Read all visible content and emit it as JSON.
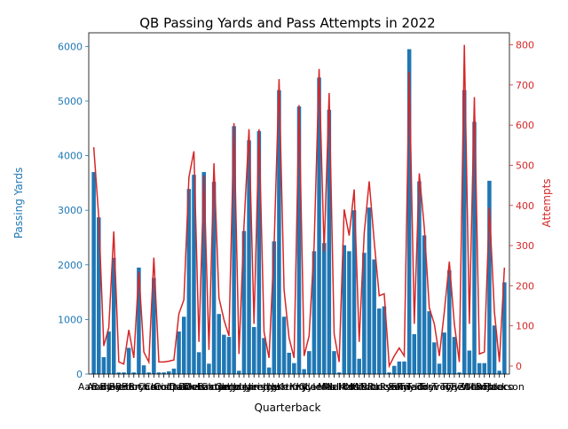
{
  "chart_data": {
    "type": "bar+line",
    "title": "QB Passing Yards and Pass Attempts in 2022",
    "xlabel": "Quarterback",
    "ylabel_left": "Passing Yards",
    "ylabel_right": "Attempts",
    "ylim_left": [
      0,
      6250
    ],
    "ylim_right": [
      -20,
      830
    ],
    "yticks_left": [
      0,
      1000,
      2000,
      3000,
      4000,
      5000,
      6000
    ],
    "yticks_right": [
      0,
      100,
      200,
      300,
      400,
      500,
      600,
      700,
      800
    ],
    "xtick_labels_visible": [
      "Aaron",
      "Andy",
      "Bailey",
      "Baker",
      "Brett",
      "Brian",
      "Brock",
      "Bryce",
      "Case",
      "Chris",
      "Colt",
      "Cooper",
      "Dak",
      "Daniel",
      "Davis",
      "Derek",
      "Desmond",
      "Easton",
      "Gardner",
      "Geno",
      "Jacoby",
      "Jalen",
      "Jameis",
      "Jared",
      "Jimmy",
      "Joe",
      "Josh",
      "Justin",
      "Kenny",
      "Kirk",
      "Kyle",
      "Kyler",
      "Lamar",
      "Mac",
      "Malik",
      "Marcus",
      "Matt",
      "Mike",
      "Mitch",
      "Nick",
      "Patrick",
      "Russell",
      "Ryan",
      "Sam",
      "Skylar",
      "Taylor",
      "Teddy",
      "Tom",
      "Trevor",
      "Trey",
      "Tua",
      "Tyler",
      "Tyson",
      "Zach",
      "Wilson",
      "Mariota",
      "Ridder",
      "Flacco",
      "Jackson"
    ],
    "bar_color": "#1f77b4",
    "line_color": "#d62728",
    "axis_left_color": "#1f77b4",
    "axis_right_color": "#d62728",
    "series": [
      {
        "name": "Passing Yards",
        "kind": "bar",
        "axis": "left",
        "values": [
          3700,
          2870,
          310,
          780,
          2130,
          30,
          30,
          480,
          30,
          1950,
          160,
          30,
          1760,
          30,
          30,
          50,
          100,
          780,
          1050,
          3390,
          3650,
          400,
          3700,
          190,
          3520,
          1100,
          720,
          680,
          4540,
          60,
          2620,
          4280,
          860,
          4450,
          660,
          120,
          2430,
          5200,
          1050,
          390,
          200,
          4900,
          90,
          420,
          2250,
          5430,
          2400,
          4840,
          420,
          30,
          2360,
          2250,
          3000,
          280,
          2220,
          3050,
          2100,
          1200,
          1240,
          30,
          150,
          230,
          230,
          5950,
          730,
          3530,
          2540,
          1150,
          580,
          190,
          760,
          1900,
          680,
          30,
          5200,
          430,
          4620,
          200,
          200,
          3540,
          890,
          60,
          1680
        ]
      },
      {
        "name": "Attempts",
        "kind": "line",
        "axis": "right",
        "values": [
          545,
          370,
          50,
          95,
          335,
          10,
          5,
          90,
          20,
          235,
          35,
          10,
          270,
          10,
          10,
          12,
          15,
          130,
          165,
          470,
          535,
          60,
          475,
          40,
          505,
          170,
          115,
          75,
          605,
          30,
          350,
          590,
          105,
          590,
          85,
          20,
          295,
          715,
          190,
          70,
          20,
          650,
          25,
          75,
          300,
          740,
          285,
          680,
          80,
          10,
          390,
          325,
          440,
          60,
          330,
          460,
          310,
          175,
          180,
          0,
          25,
          45,
          25,
          733,
          105,
          480,
          345,
          145,
          105,
          25,
          135,
          260,
          105,
          10,
          800,
          105,
          670,
          30,
          35,
          395,
          135,
          10,
          245
        ]
      }
    ]
  }
}
